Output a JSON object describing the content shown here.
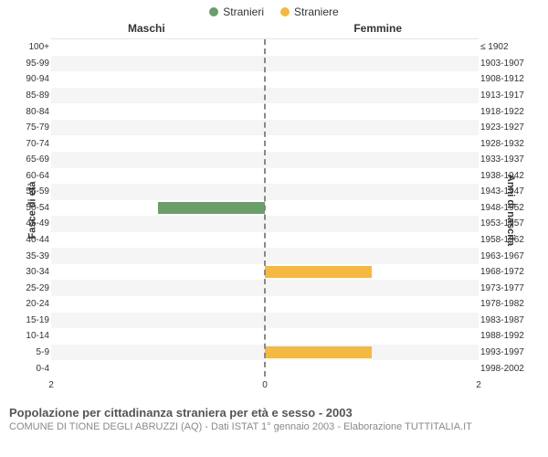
{
  "legend": {
    "male": {
      "label": "Stranieri",
      "color": "#6b9e6b"
    },
    "female": {
      "label": "Straniere",
      "color": "#f4b942"
    }
  },
  "columns": {
    "left": "Maschi",
    "right": "Femmine"
  },
  "axis": {
    "left_label": "Fasce di età",
    "right_label": "Anni di nascita",
    "x_ticks": [
      "2",
      "0",
      "2"
    ],
    "x_max": 2,
    "center_dash_color": "#888888",
    "tick_font_size": 10
  },
  "colors": {
    "male_bar": "#6b9e6b",
    "female_bar": "#f4b942",
    "background": "#ffffff",
    "row_alt": "#f5f5f5"
  },
  "rows": [
    {
      "age": "100+",
      "years": "≤ 1902",
      "male": 0,
      "female": 0
    },
    {
      "age": "95-99",
      "years": "1903-1907",
      "male": 0,
      "female": 0
    },
    {
      "age": "90-94",
      "years": "1908-1912",
      "male": 0,
      "female": 0
    },
    {
      "age": "85-89",
      "years": "1913-1917",
      "male": 0,
      "female": 0
    },
    {
      "age": "80-84",
      "years": "1918-1922",
      "male": 0,
      "female": 0
    },
    {
      "age": "75-79",
      "years": "1923-1927",
      "male": 0,
      "female": 0
    },
    {
      "age": "70-74",
      "years": "1928-1932",
      "male": 0,
      "female": 0
    },
    {
      "age": "65-69",
      "years": "1933-1937",
      "male": 0,
      "female": 0
    },
    {
      "age": "60-64",
      "years": "1938-1942",
      "male": 0,
      "female": 0
    },
    {
      "age": "55-59",
      "years": "1943-1947",
      "male": 0,
      "female": 0
    },
    {
      "age": "50-54",
      "years": "1948-1952",
      "male": 1,
      "female": 0
    },
    {
      "age": "45-49",
      "years": "1953-1957",
      "male": 0,
      "female": 0
    },
    {
      "age": "40-44",
      "years": "1958-1962",
      "male": 0,
      "female": 0
    },
    {
      "age": "35-39",
      "years": "1963-1967",
      "male": 0,
      "female": 0
    },
    {
      "age": "30-34",
      "years": "1968-1972",
      "male": 0,
      "female": 1
    },
    {
      "age": "25-29",
      "years": "1973-1977",
      "male": 0,
      "female": 0
    },
    {
      "age": "20-24",
      "years": "1978-1982",
      "male": 0,
      "female": 0
    },
    {
      "age": "15-19",
      "years": "1983-1987",
      "male": 0,
      "female": 0
    },
    {
      "age": "10-14",
      "years": "1988-1992",
      "male": 0,
      "female": 0
    },
    {
      "age": "5-9",
      "years": "1993-1997",
      "male": 0,
      "female": 1
    },
    {
      "age": "0-4",
      "years": "1998-2002",
      "male": 0,
      "female": 0
    }
  ],
  "footer": {
    "title": "Popolazione per cittadinanza straniera per età e sesso - 2003",
    "subtitle": "COMUNE DI TIONE DEGLI ABRUZZI (AQ) - Dati ISTAT 1° gennaio 2003 - Elaborazione TUTTITALIA.IT"
  }
}
